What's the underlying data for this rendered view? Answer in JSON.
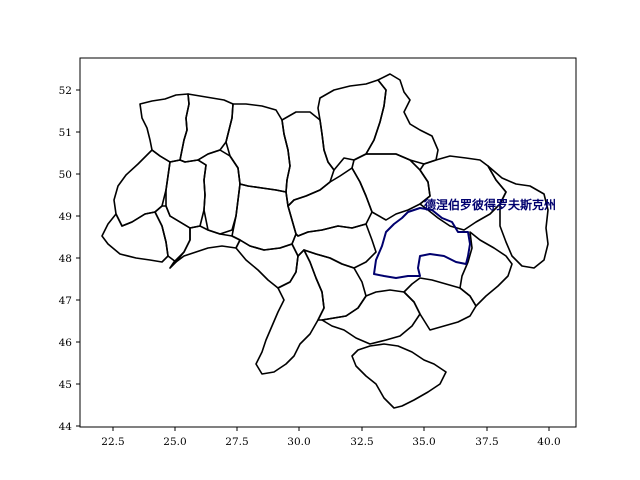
{
  "map": {
    "x_ticks": [
      "22.5",
      "25.0",
      "27.5",
      "30.0",
      "32.5",
      "35.0",
      "37.5",
      "40.0"
    ],
    "y_ticks": [
      "52",
      "51",
      "50",
      "49",
      "48",
      "47",
      "46",
      "45",
      "44"
    ],
    "x_range": [
      21.4,
      41.1
    ],
    "y_range": [
      43.95,
      52.75
    ],
    "highlighted_region": {
      "label": "德涅伯罗彼得罗夫斯克州",
      "color": "#00006e"
    },
    "region_count": 27
  }
}
